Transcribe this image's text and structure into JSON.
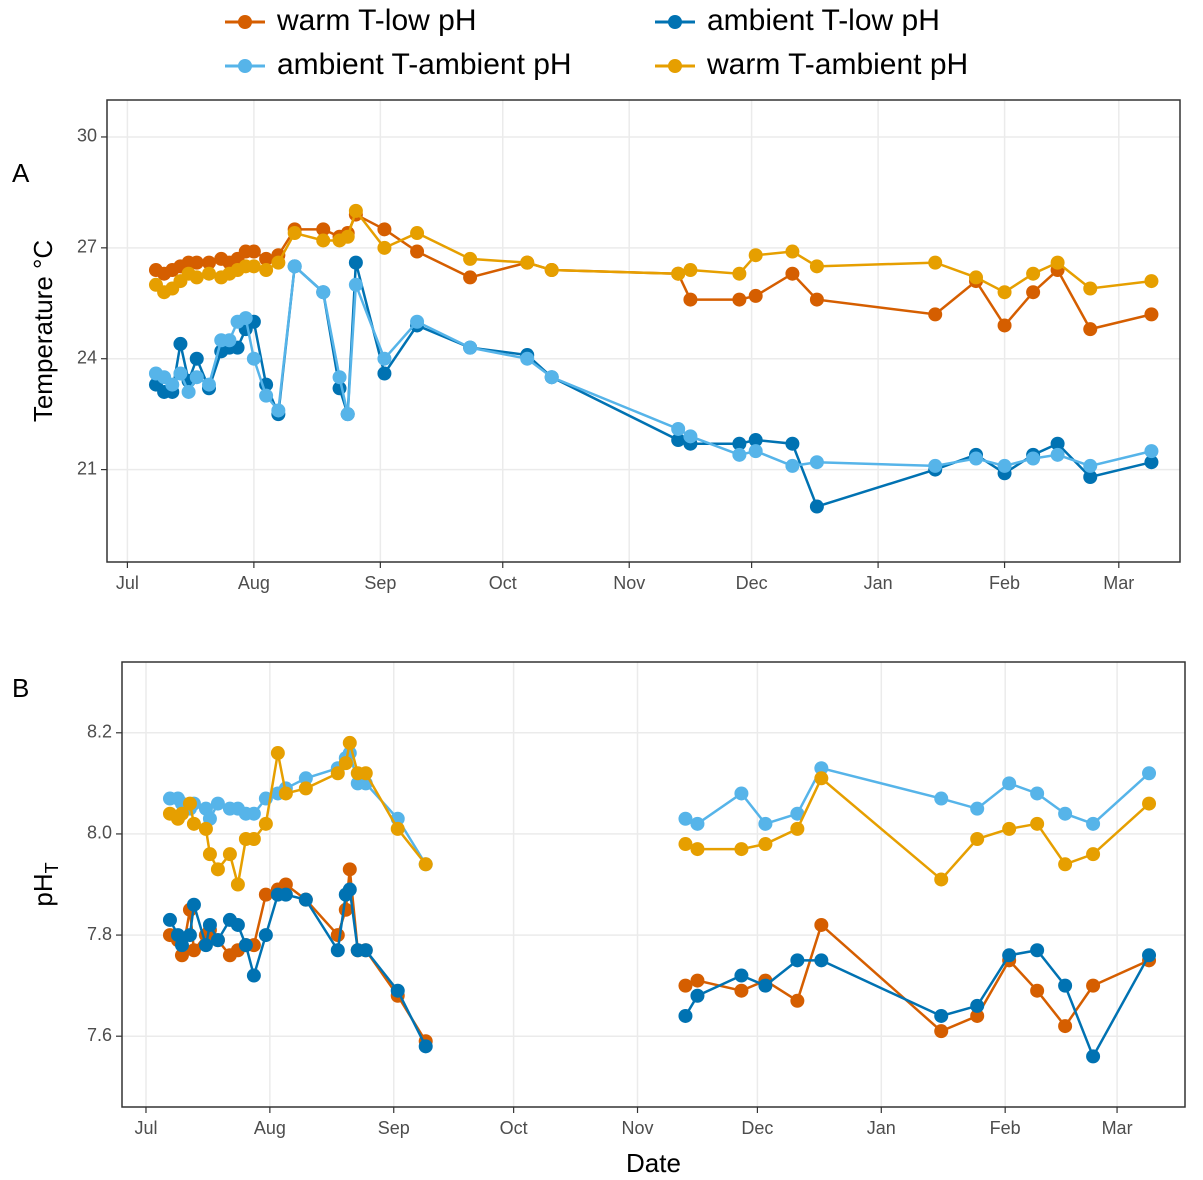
{
  "legend_position": "top",
  "chart_data": [
    {
      "type": "line",
      "panel_label": "A",
      "ylabel": "Temperature °C",
      "x": [
        7,
        9,
        11,
        13,
        15,
        17,
        20,
        23,
        25,
        27,
        29,
        31,
        34,
        37,
        41,
        48,
        52,
        54,
        56,
        63,
        71,
        84,
        98,
        104,
        135,
        138,
        150,
        154,
        163,
        169,
        198,
        208,
        215,
        222,
        228,
        236,
        251
      ],
      "xlim": [
        -5,
        258
      ],
      "ylim": [
        18.5,
        31
      ],
      "xticks": [
        {
          "value": 0,
          "label": "Jul"
        },
        {
          "value": 31,
          "label": "Aug"
        },
        {
          "value": 62,
          "label": "Sep"
        },
        {
          "value": 92,
          "label": "Oct"
        },
        {
          "value": 123,
          "label": "Nov"
        },
        {
          "value": 153,
          "label": "Dec"
        },
        {
          "value": 184,
          "label": "Jan"
        },
        {
          "value": 215,
          "label": "Feb"
        },
        {
          "value": 243,
          "label": "Mar"
        }
      ],
      "yticks": [
        21,
        24,
        27,
        30
      ],
      "grid": true,
      "series": [
        {
          "name": "warm T-low pH",
          "color": "#D55E00",
          "values": [
            26.4,
            26.3,
            26.4,
            26.5,
            26.6,
            26.6,
            26.6,
            26.7,
            26.6,
            26.7,
            26.9,
            26.9,
            26.7,
            26.8,
            27.5,
            27.5,
            27.3,
            27.4,
            27.9,
            27.5,
            26.9,
            26.2,
            26.6,
            26.4,
            26.3,
            25.6,
            25.6,
            25.7,
            26.3,
            25.6,
            25.2,
            26.1,
            24.9,
            25.8,
            26.4,
            24.8,
            25.2
          ]
        },
        {
          "name": "ambient T-low pH",
          "color": "#0072B2",
          "values": [
            23.3,
            23.1,
            23.1,
            24.4,
            23.4,
            24.0,
            23.2,
            24.2,
            24.3,
            24.3,
            24.8,
            25.0,
            23.3,
            22.5,
            26.5,
            25.8,
            23.2,
            22.5,
            26.6,
            23.6,
            24.9,
            24.3,
            24.1,
            23.5,
            21.8,
            21.7,
            21.7,
            21.8,
            21.7,
            20.0,
            21.0,
            21.4,
            20.9,
            21.4,
            21.7,
            20.8,
            21.2
          ]
        },
        {
          "name": "ambient T-ambient pH",
          "color": "#56B4E9",
          "values": [
            23.6,
            23.5,
            23.3,
            23.6,
            23.1,
            23.5,
            23.3,
            24.5,
            24.5,
            25.0,
            25.1,
            24.0,
            23.0,
            22.6,
            26.5,
            25.8,
            23.5,
            22.5,
            26.0,
            24.0,
            25.0,
            24.3,
            24.0,
            23.5,
            22.1,
            21.9,
            21.4,
            21.5,
            21.1,
            21.2,
            21.1,
            21.3,
            21.1,
            21.3,
            21.4,
            21.1,
            21.5
          ]
        },
        {
          "name": "warm T-ambient pH",
          "color": "#E69F00",
          "values": [
            26.0,
            25.8,
            25.9,
            26.1,
            26.3,
            26.2,
            26.3,
            26.2,
            26.3,
            26.4,
            26.5,
            26.5,
            26.4,
            26.6,
            27.4,
            27.2,
            27.2,
            27.3,
            28.0,
            27.0,
            27.4,
            26.7,
            26.6,
            26.4,
            26.3,
            26.4,
            26.3,
            26.8,
            26.9,
            26.5,
            26.6,
            26.2,
            25.8,
            26.3,
            26.6,
            25.9,
            26.1
          ]
        }
      ]
    },
    {
      "type": "line",
      "panel_label": "B",
      "ylabel": "pH",
      "ylabel_subscript": "T",
      "xlabel": "Date",
      "x": [
        6,
        8,
        9,
        11,
        12,
        15,
        16,
        18,
        21,
        23,
        25,
        27,
        30,
        33,
        35,
        40,
        48,
        50,
        51,
        53,
        55,
        63,
        70,
        135,
        138,
        149,
        155,
        163,
        169,
        199,
        208,
        216,
        223,
        230,
        237,
        251
      ],
      "xlim": [
        -6,
        260
      ],
      "ylim": [
        7.46,
        8.34
      ],
      "xticks": [
        {
          "value": 0,
          "label": "Jul"
        },
        {
          "value": 31,
          "label": "Aug"
        },
        {
          "value": 62,
          "label": "Sep"
        },
        {
          "value": 92,
          "label": "Oct"
        },
        {
          "value": 123,
          "label": "Nov"
        },
        {
          "value": 153,
          "label": "Dec"
        },
        {
          "value": 184,
          "label": "Jan"
        },
        {
          "value": 215,
          "label": "Feb"
        },
        {
          "value": 243,
          "label": "Mar"
        }
      ],
      "yticks": [
        7.6,
        7.8,
        {
          "value": 8,
          "label": "8.0"
        },
        8.2
      ],
      "grid": true,
      "series": [
        {
          "color": "#D55E00",
          "values": [
            7.8,
            7.79,
            7.76,
            7.85,
            7.77,
            7.8,
            7.81,
            7.79,
            7.76,
            7.77,
            7.78,
            7.78,
            7.88,
            7.89,
            7.9,
            7.87,
            7.8,
            7.85,
            7.93,
            7.77,
            7.77,
            7.68,
            7.59,
            7.7,
            7.71,
            7.69,
            7.71,
            7.67,
            7.82,
            7.61,
            7.64,
            7.75,
            7.69,
            7.62,
            7.7,
            7.75
          ]
        },
        {
          "color": "#0072B2",
          "values": [
            7.83,
            7.8,
            7.78,
            7.8,
            7.86,
            7.78,
            7.82,
            7.79,
            7.83,
            7.82,
            7.78,
            7.72,
            7.8,
            7.88,
            7.88,
            7.87,
            7.77,
            7.88,
            7.89,
            7.77,
            7.77,
            7.69,
            7.58,
            7.64,
            7.68,
            7.72,
            7.7,
            7.75,
            7.75,
            7.64,
            7.66,
            7.76,
            7.77,
            7.7,
            7.56,
            7.76
          ]
        },
        {
          "color": "#56B4E9",
          "values": [
            8.07,
            8.07,
            8.06,
            8.05,
            8.06,
            8.05,
            8.03,
            8.06,
            8.05,
            8.05,
            8.04,
            8.04,
            8.07,
            8.08,
            8.09,
            8.11,
            8.13,
            8.15,
            8.16,
            8.1,
            8.1,
            8.03,
            7.94,
            8.03,
            8.02,
            8.08,
            8.02,
            8.04,
            8.13,
            8.07,
            8.05,
            8.1,
            8.08,
            8.04,
            8.02,
            8.12
          ]
        },
        {
          "color": "#E69F00",
          "values": [
            8.04,
            8.03,
            8.04,
            8.06,
            8.02,
            8.01,
            7.96,
            7.93,
            7.96,
            7.9,
            7.99,
            7.99,
            8.02,
            8.16,
            8.08,
            8.09,
            8.12,
            8.14,
            8.18,
            8.12,
            8.12,
            8.01,
            7.94,
            7.98,
            7.97,
            7.97,
            7.98,
            8.01,
            8.11,
            7.91,
            7.99,
            8.01,
            8.02,
            7.94,
            7.96,
            8.06
          ]
        }
      ]
    }
  ]
}
